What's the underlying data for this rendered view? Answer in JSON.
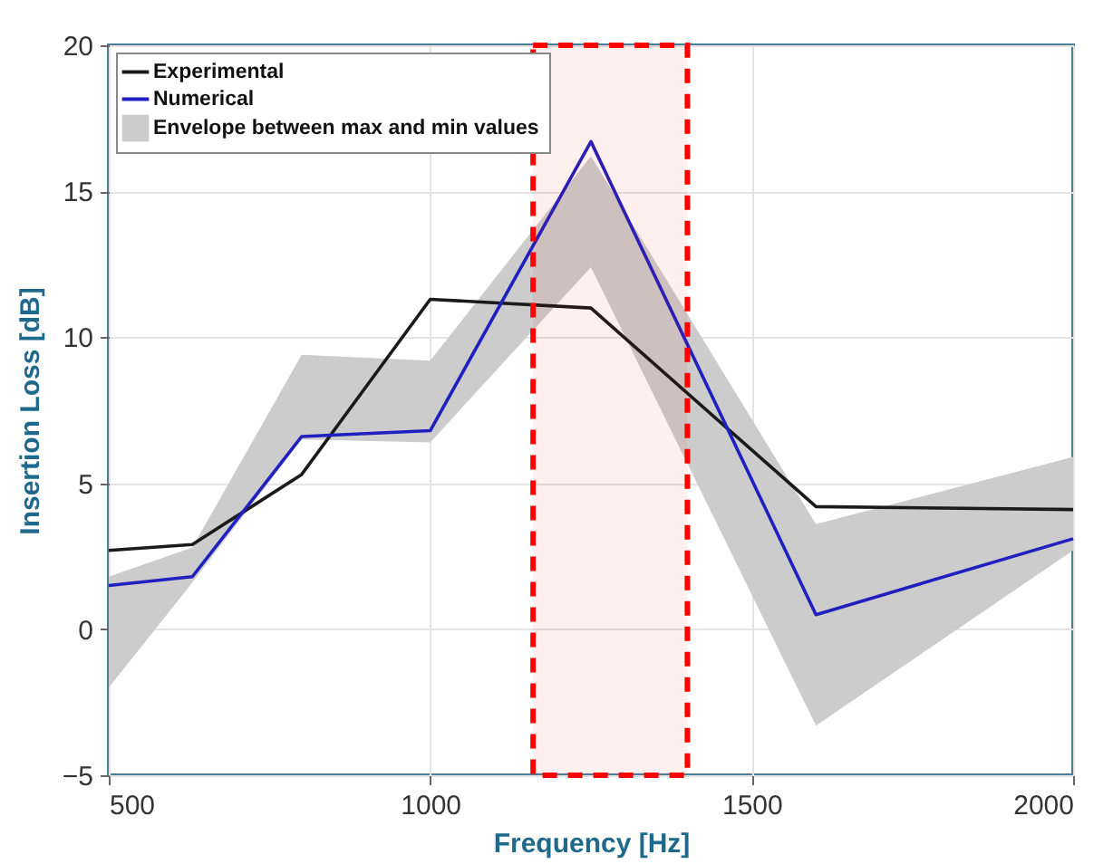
{
  "chart_data": {
    "type": "line",
    "xlabel": "Frequency [Hz]",
    "ylabel": "Insertion Loss [dB]",
    "x": [
      500,
      630,
      800,
      1000,
      1250,
      1600,
      2000
    ],
    "series": [
      {
        "name": "Experimental",
        "color": "#1a1a1a",
        "values": [
          2.7,
          2.9,
          5.3,
          11.3,
          11.0,
          4.2,
          4.1
        ]
      },
      {
        "name": "Numerical",
        "color": "#2020c0",
        "values": [
          1.5,
          1.8,
          6.6,
          6.8,
          16.7,
          0.5,
          3.1
        ]
      },
      {
        "name": "Envelope between max and min values",
        "type": "area",
        "color": "#cccccc",
        "values": [
          null,
          null,
          null,
          null,
          null,
          null,
          null
        ],
        "lower": [
          -2.0,
          1.6,
          6.5,
          6.4,
          12.4,
          -3.3,
          2.7
        ],
        "upper": [
          1.8,
          2.8,
          9.4,
          9.2,
          16.2,
          3.6,
          5.9
        ]
      }
    ],
    "bands": [
      {
        "axis": "x",
        "from": 1160,
        "to": 1400,
        "color": "#ff0000"
      }
    ],
    "xlim": [
      500,
      2000
    ],
    "xticks": [
      500,
      1000,
      1500,
      2000
    ],
    "ylim": [
      -5,
      20
    ],
    "yticks": [
      -5,
      0,
      5,
      10,
      15,
      20
    ],
    "grid": true,
    "legend": "top left"
  }
}
